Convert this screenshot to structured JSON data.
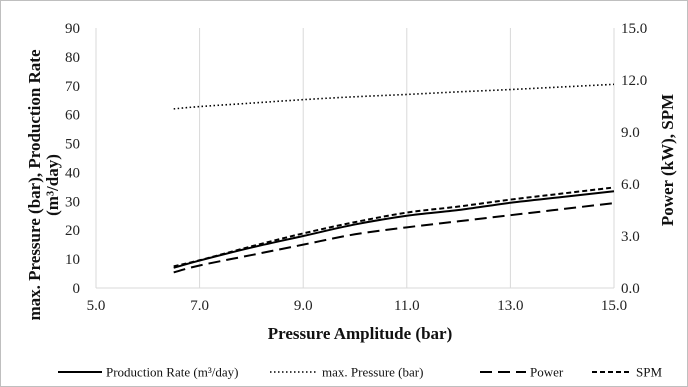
{
  "chart_data": {
    "type": "line",
    "xlabel": "Pressure Amplitude (bar)",
    "ylabel_left": "max. Pressure (bar), Production Rate (m³/day)",
    "ylabel_right": "Power (kW), SPM",
    "x_ticks": [
      "5.0",
      "7.0",
      "9.0",
      "11.0",
      "13.0",
      "15.0"
    ],
    "y_left_ticks": [
      "0",
      "10",
      "20",
      "30",
      "40",
      "50",
      "60",
      "70",
      "80",
      "90"
    ],
    "y_right_ticks": [
      "0.0",
      "3.0",
      "6.0",
      "9.0",
      "12.0",
      "15.0"
    ],
    "xlim": [
      5.0,
      15.0
    ],
    "ylim_left": [
      0,
      90
    ],
    "ylim_right": [
      0,
      15
    ],
    "grid": "vertical",
    "legend_position": "bottom",
    "series": [
      {
        "name": "Production Rate (m³/day)",
        "axis": "left",
        "style": "solid",
        "color": "#000000",
        "x": [
          6.5,
          7,
          8,
          9,
          10,
          11,
          12,
          13,
          14,
          15
        ],
        "y": [
          7,
          9.5,
          14,
          18,
          22,
          25,
          27,
          29.5,
          31.5,
          33.5
        ]
      },
      {
        "name": "max. Pressure (bar)",
        "axis": "left",
        "style": "dotted",
        "color": "#000000",
        "x": [
          6.5,
          7,
          8,
          9,
          10,
          11,
          12,
          13,
          14,
          15
        ],
        "y": [
          62,
          62.8,
          64,
          65.2,
          66.2,
          67,
          67.9,
          68.7,
          69.6,
          70.5
        ]
      },
      {
        "name": "Power",
        "axis": "right",
        "style": "dash",
        "color": "#000000",
        "x": [
          6.5,
          7,
          8,
          9,
          10,
          11,
          12,
          13,
          14,
          15
        ],
        "y": [
          0.9,
          1.3,
          1.9,
          2.5,
          3.1,
          3.5,
          3.85,
          4.2,
          4.55,
          4.9
        ]
      },
      {
        "name": "SPM",
        "axis": "right",
        "style": "shortdash",
        "color": "#000000",
        "x": [
          6.5,
          7,
          8,
          9,
          10,
          11,
          12,
          13,
          14,
          15
        ],
        "y": [
          1.25,
          1.6,
          2.4,
          3.15,
          3.8,
          4.35,
          4.7,
          5.1,
          5.45,
          5.8
        ]
      }
    ]
  }
}
